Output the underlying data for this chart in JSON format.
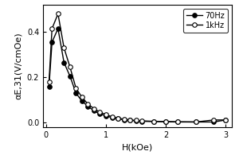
{
  "title": "",
  "xlabel": "H(kOe)",
  "ylabel": "αE,31(V/cmOe)",
  "xlim": [
    -0.05,
    3.1
  ],
  "ylim": [
    -0.02,
    0.52
  ],
  "yticks": [
    0.0,
    0.2,
    0.4
  ],
  "xticks": [
    0,
    1,
    2,
    3
  ],
  "series_70hz": {
    "label": "70Hz",
    "x": [
      0.05,
      0.1,
      0.2,
      0.3,
      0.4,
      0.5,
      0.6,
      0.7,
      0.8,
      0.9,
      1.0,
      1.1,
      1.2,
      1.3,
      1.4,
      1.5,
      1.6,
      1.8,
      2.0,
      2.2,
      2.5,
      2.8,
      3.0
    ],
    "y": [
      0.16,
      0.355,
      0.415,
      0.265,
      0.205,
      0.13,
      0.095,
      0.072,
      0.052,
      0.038,
      0.03,
      0.022,
      0.017,
      0.013,
      0.01,
      0.008,
      0.006,
      0.005,
      0.004,
      0.003,
      0.003,
      0.003,
      0.012
    ],
    "marker": "o",
    "markerfacecolor": "black",
    "markeredgecolor": "black",
    "markersize": 4,
    "color": "black",
    "linewidth": 1.0
  },
  "series_1khz": {
    "label": "1kHz",
    "x": [
      0.05,
      0.1,
      0.2,
      0.3,
      0.4,
      0.5,
      0.6,
      0.7,
      0.8,
      0.9,
      1.0,
      1.1,
      1.2,
      1.3,
      1.4,
      1.5,
      1.6,
      1.8,
      2.0,
      2.2,
      2.5,
      2.8,
      3.0
    ],
    "y": [
      0.18,
      0.415,
      0.48,
      0.33,
      0.245,
      0.152,
      0.112,
      0.082,
      0.062,
      0.046,
      0.036,
      0.026,
      0.02,
      0.015,
      0.012,
      0.01,
      0.008,
      0.006,
      0.005,
      0.004,
      0.003,
      0.012,
      0.012
    ],
    "marker": "o",
    "markerfacecolor": "white",
    "markeredgecolor": "black",
    "markersize": 4,
    "color": "black",
    "linewidth": 1.0
  },
  "legend_loc": "upper right",
  "background_color": "#ffffff",
  "tick_fontsize": 7,
  "label_fontsize": 8
}
